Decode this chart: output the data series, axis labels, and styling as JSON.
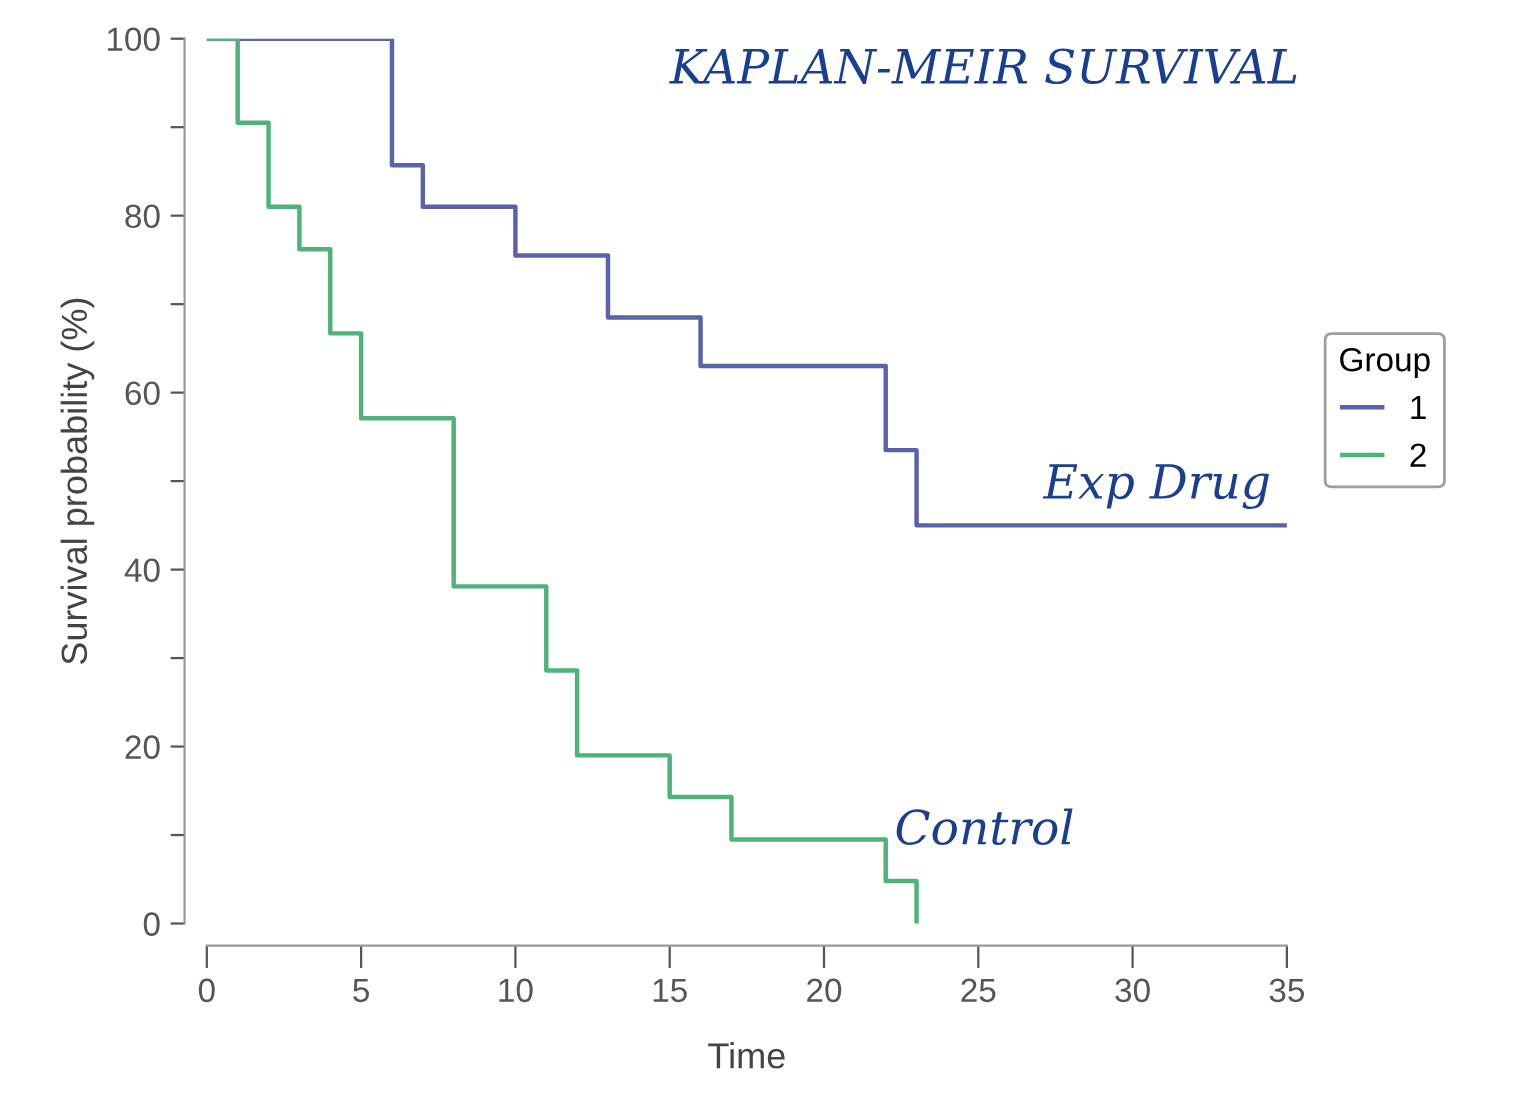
{
  "chart_data": {
    "type": "step",
    "xlabel": "Time",
    "ylabel": "Survival probability (%)",
    "legend_title": "Group",
    "legend": "right",
    "xlim": [
      0,
      35
    ],
    "ylim": [
      0,
      100
    ],
    "xticks": [
      0,
      5,
      10,
      15,
      20,
      25,
      30,
      35
    ],
    "yticks": [
      0,
      {
        "value": 10,
        "label": null
      },
      20,
      {
        "value": 30,
        "label": null
      },
      40,
      {
        "value": 50,
        "label": null
      },
      60,
      {
        "value": 70,
        "label": null
      },
      80,
      {
        "value": 90,
        "label": null
      },
      100
    ],
    "series": [
      {
        "name": "1",
        "color": "#5b63a8",
        "x": [
          0,
          6,
          7,
          10,
          13,
          16,
          22,
          23,
          35
        ],
        "values": [
          100,
          85.7,
          81,
          75.5,
          68.5,
          63,
          53.5,
          45,
          45
        ]
      },
      {
        "name": "2",
        "color": "#4fb27a",
        "x": [
          0,
          1,
          2,
          3,
          4,
          5,
          8,
          11,
          12,
          15,
          17,
          22,
          23
        ],
        "values": [
          100,
          90.5,
          81,
          76.2,
          66.7,
          57.1,
          38.1,
          28.6,
          19,
          14.3,
          9.5,
          4.8,
          0
        ]
      }
    ],
    "annotations": [
      "KAPLAN-MEIR SURVIVAL",
      "Exp Drug",
      "Control"
    ]
  }
}
